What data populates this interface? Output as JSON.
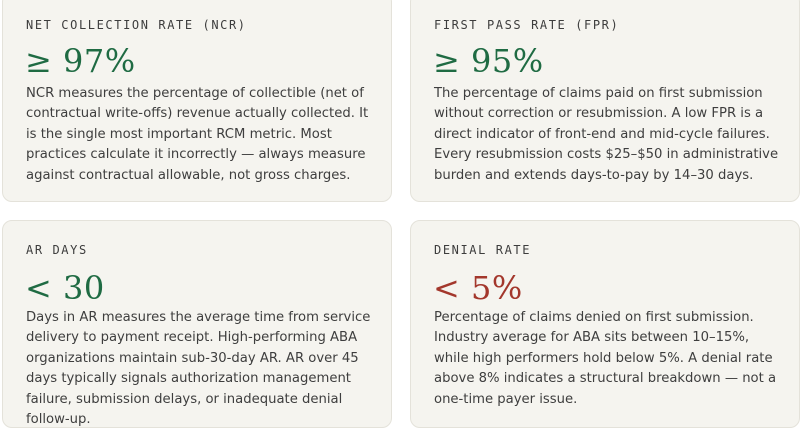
{
  "metrics": [
    {
      "label": "NET COLLECTION RATE (NCR)",
      "value": "≥ 97%",
      "value_color": "#1f6b43",
      "description": "NCR measures the percentage of collectible (net of contractual write-offs) revenue actually collected. It is the single most important RCM metric. Most practices calculate it incorrectly — always measure against contractual allowable, not gross charges."
    },
    {
      "label": "FIRST PASS RATE (FPR)",
      "value": "≥ 95%",
      "value_color": "#1f6b43",
      "description": "The percentage of claims paid on first submission without correction or resubmission. A low FPR is a direct indicator of front-end and mid-cycle failures. Every resubmission costs $25–$50 in administrative burden and extends days-to-pay by 14–30 days."
    },
    {
      "label": "AR DAYS",
      "value": "< 30",
      "value_color": "#1f6b43",
      "description": "Days in AR measures the average time from service delivery to payment receipt. High-performing ABA organizations maintain sub-30-day AR. AR over 45 days typically signals authorization management failure, submission delays, or inadequate denial follow-up."
    },
    {
      "label": "DENIAL RATE",
      "value": "< 5%",
      "value_color": "#a3372c",
      "description": "Percentage of claims denied on first submission. Industry average for ABA sits between 10–15%, while high performers hold below 5%. A denial rate above 8% indicates a structural breakdown — not a one-time payer issue."
    }
  ]
}
